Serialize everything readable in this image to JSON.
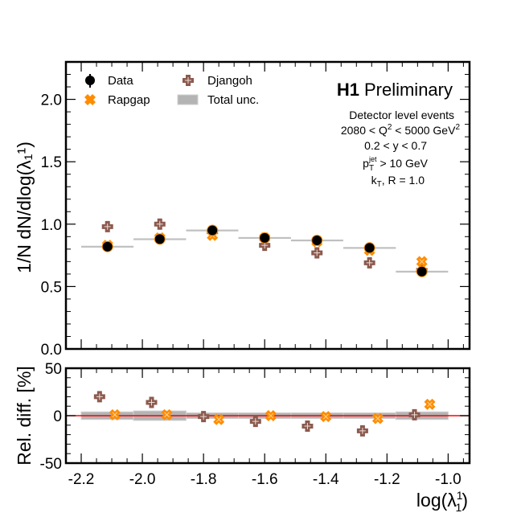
{
  "chart_data": [
    {
      "type": "scatter",
      "panel": "main",
      "title": "H1 Preliminary",
      "title_bold": "H1",
      "title_rest": "Preliminary",
      "ylabel": "1/N dN/dlog(λ₁¹)",
      "xlabel": "",
      "xlim": [
        -2.25,
        -0.93
      ],
      "ylim": [
        0.0,
        2.3
      ],
      "yticks": [
        0.0,
        0.5,
        1.0,
        1.5,
        2.0
      ],
      "ytick_labels": [
        "0.0",
        "0.5",
        "1.0",
        "1.5",
        "2.0"
      ],
      "xticks": [
        -2.2,
        -2.0,
        -1.8,
        -1.6,
        -1.4,
        -1.2,
        -1.0
      ],
      "grid": false,
      "legend_position": "top-left",
      "legend": [
        {
          "label": "Data",
          "marker": "filled-circle",
          "color": "#000000"
        },
        {
          "label": "Rapgap",
          "marker": "x-cross",
          "color": "#ff8c00"
        },
        {
          "label": "Djangoh",
          "marker": "plus-cross",
          "color": "#8b5a4e"
        },
        {
          "label": "Total unc.",
          "marker": "box",
          "color": "#b4b4b4"
        }
      ],
      "annotations": [
        "Detector level events",
        "2080 < Q² < 5000 GeV²",
        "0.2 < y < 0.7",
        "p_T^jet > 10 GeV",
        "k_T, R = 1.0"
      ],
      "bin_edges": [
        -2.2,
        -2.029,
        -1.857,
        -1.686,
        -1.514,
        -1.343,
        -1.171,
        -1.0
      ],
      "x": [
        -2.114,
        -1.943,
        -1.771,
        -1.6,
        -1.429,
        -1.257,
        -1.086
      ],
      "series": [
        {
          "name": "Data",
          "values": [
            0.82,
            0.88,
            0.95,
            0.89,
            0.87,
            0.81,
            0.62
          ]
        },
        {
          "name": "Rapgap",
          "values": [
            0.83,
            0.89,
            0.91,
            0.89,
            0.86,
            0.79,
            0.7
          ]
        },
        {
          "name": "Djangoh",
          "values": [
            0.98,
            1.0,
            0.94,
            0.83,
            0.77,
            0.69,
            0.63
          ]
        }
      ]
    },
    {
      "type": "scatter",
      "panel": "ratio",
      "ylabel": "Rel. diff. [%]",
      "xlabel": "log(λ₁¹)",
      "xlim": [
        -2.25,
        -0.93
      ],
      "ylim": [
        -50,
        50
      ],
      "yticks": [
        -50,
        0,
        50
      ],
      "ytick_labels": [
        "-50",
        "0",
        "50"
      ],
      "xticks": [
        -2.2,
        -2.0,
        -1.8,
        -1.6,
        -1.4,
        -1.2,
        -1.0
      ],
      "xtick_labels": [
        "-2.2",
        "-2.0",
        "-1.8",
        "-1.6",
        "-1.4",
        "-1.2",
        "-1.0"
      ],
      "grid": false,
      "reference_line": {
        "value": 0,
        "color": "#ff0000"
      },
      "bin_edges": [
        -2.2,
        -2.029,
        -1.857,
        -1.686,
        -1.514,
        -1.343,
        -1.171,
        -1.0
      ],
      "total_unc_percent": [
        4,
        5,
        3,
        3,
        3,
        3,
        4
      ],
      "series": [
        {
          "name": "Djangoh",
          "x": [
            -2.14,
            -1.97,
            -1.8,
            -1.63,
            -1.46,
            -1.28,
            -1.11
          ],
          "values": [
            20,
            14,
            -1,
            -6,
            -11,
            -16,
            1
          ]
        },
        {
          "name": "Rapgap",
          "x": [
            -2.09,
            -1.92,
            -1.75,
            -1.58,
            -1.4,
            -1.23,
            -1.06
          ],
          "values": [
            1,
            1,
            -4,
            0,
            -1,
            -3,
            12
          ]
        }
      ]
    }
  ],
  "colors": {
    "data": "#000000",
    "rapgap": "#ff8c00",
    "djangoh": "#8b5a4e",
    "band": "#b4b4b4",
    "reference": "#ff0000"
  }
}
